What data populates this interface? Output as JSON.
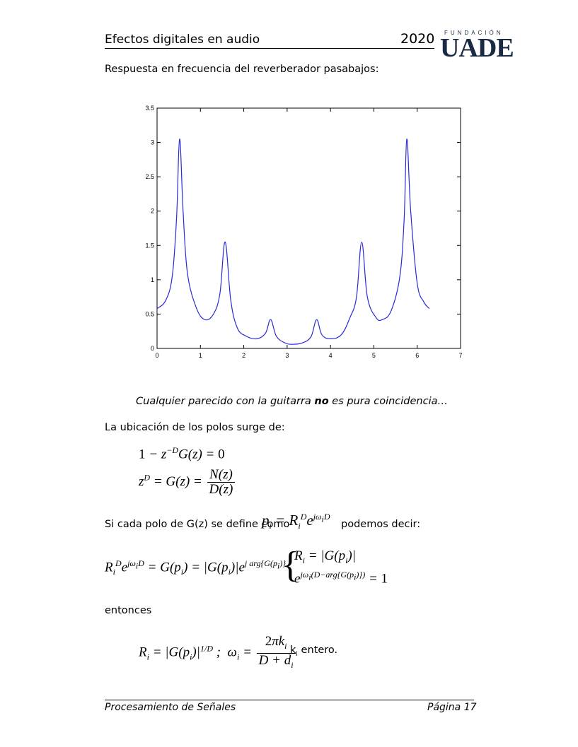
{
  "header": {
    "title": "Efectos digitales en audio",
    "year": "2020",
    "logo_sub": "FUNDACIÓN",
    "logo_main": "UADE"
  },
  "intro_text": "Respuesta en frecuencia del reverberador pasabajos:",
  "chart_data": {
    "type": "line",
    "xlim": [
      0,
      7
    ],
    "ylim": [
      0,
      3.5
    ],
    "xticks": [
      "0",
      "1",
      "2",
      "3",
      "4",
      "5",
      "6",
      "7"
    ],
    "yticks": [
      "0",
      "0.5",
      "1",
      "1.5",
      "2",
      "2.5",
      "3",
      "3.5"
    ],
    "grid": false,
    "series": [
      {
        "color": "#2a2ad8",
        "x": [
          0.0,
          0.2,
          0.35,
          0.45,
          0.52,
          0.6,
          0.7,
          0.9,
          1.1,
          1.3,
          1.45,
          1.57,
          1.7,
          1.85,
          2.05,
          2.3,
          2.5,
          2.62,
          2.75,
          2.95,
          3.14,
          3.35,
          3.55,
          3.68,
          3.8,
          4.0,
          4.25,
          4.45,
          4.6,
          4.72,
          4.85,
          5.05,
          5.2,
          5.4,
          5.6,
          5.7,
          5.76,
          5.85,
          6.0,
          6.15,
          6.28
        ],
        "y": [
          0.58,
          0.7,
          1.05,
          1.9,
          3.05,
          2.0,
          1.1,
          0.6,
          0.42,
          0.5,
          0.8,
          1.55,
          0.7,
          0.3,
          0.18,
          0.14,
          0.22,
          0.42,
          0.18,
          0.08,
          0.06,
          0.08,
          0.17,
          0.42,
          0.2,
          0.14,
          0.2,
          0.45,
          0.75,
          1.55,
          0.75,
          0.45,
          0.42,
          0.55,
          1.05,
          1.9,
          3.05,
          2.0,
          0.95,
          0.68,
          0.58
        ]
      }
    ]
  },
  "caption": {
    "part1": "Cualquier parecido con la guitarra ",
    "bold": "no",
    "part2": " es  pura coincidencia…"
  },
  "poles_text": "La ubicación de los polos surge de:",
  "pole_def": {
    "before": "Si cada polo de G(z) se define como",
    "after": "podemos decir:"
  },
  "entonces": "entonces",
  "k_text": "k",
  "k_sub": "i",
  "k_after": " entero.",
  "footer": {
    "left": "Procesamiento de Señales",
    "right": "Página 17"
  }
}
